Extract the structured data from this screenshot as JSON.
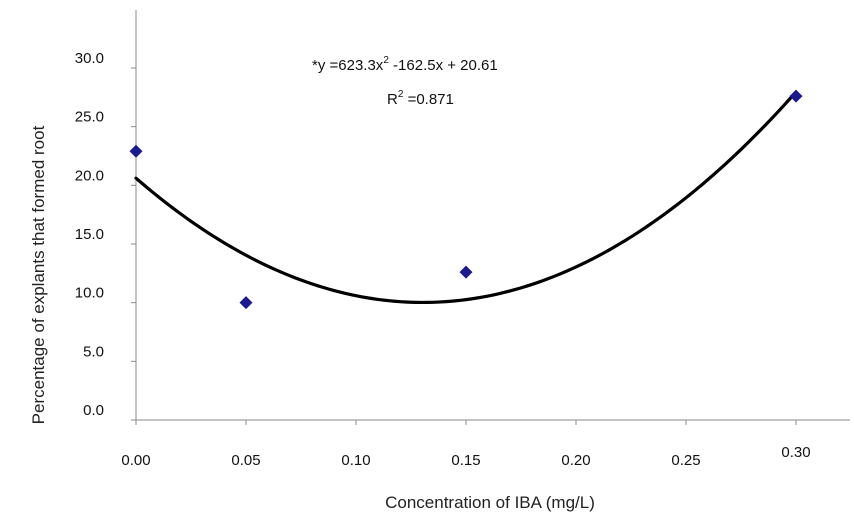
{
  "chart_data": {
    "type": "scatter",
    "xlabel": "Concentration of IBA (mg/L)",
    "ylabel": "Percentage of explants that formed root",
    "xlim": [
      0,
      0.3
    ],
    "ylim": [
      0,
      30
    ],
    "x_ticks": [
      "0.00",
      "0.05",
      "0.10",
      "0.15",
      "0.20",
      "0.25",
      "0.30"
    ],
    "y_ticks": [
      "0.0",
      "5.0",
      "10.0",
      "15.0",
      "20.0",
      "25.0",
      "30.0"
    ],
    "grid": false,
    "points": [
      {
        "x": 0.0,
        "y": 22.9
      },
      {
        "x": 0.05,
        "y": 10.0
      },
      {
        "x": 0.15,
        "y": 12.6
      },
      {
        "x": 0.3,
        "y": 27.6
      }
    ],
    "trendline": {
      "type": "polynomial",
      "coefficients": [
        623.3,
        -162.5,
        20.61
      ],
      "equation_prefix": "*y =623.3x",
      "equation_sup": "2",
      "equation_suffix": " -162.5x + 20.61",
      "r2_prefix": "R",
      "r2_sup": "2",
      "r2_suffix": " =0.871"
    },
    "colors": {
      "marker": "#1a1a8c",
      "trendline": "#000000",
      "axis": "#888888"
    }
  }
}
